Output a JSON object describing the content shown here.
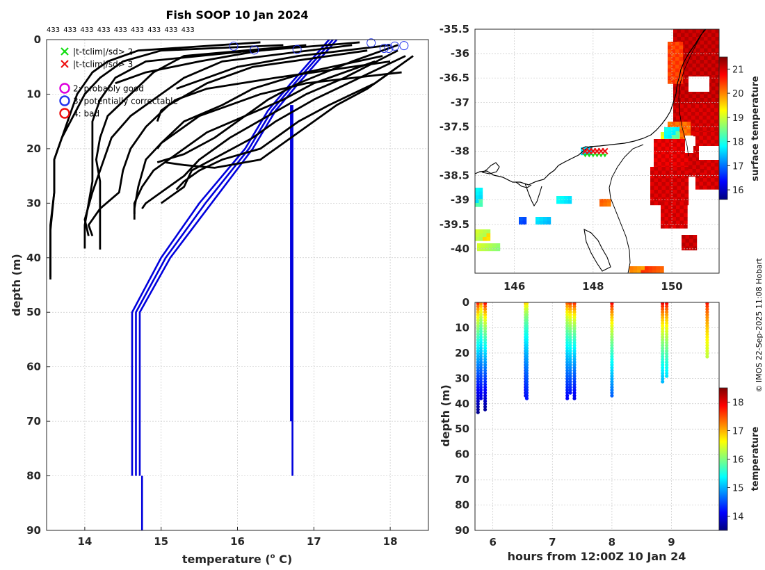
{
  "colors": {
    "profile": "#000000",
    "clim": "#0000dd",
    "grid": "#c8c8c8",
    "axis": "#262626",
    "flag_sd2": "#11dd11",
    "flag_sd3": "#ee1111",
    "flag_good": "#dd00dd",
    "flag_corr": "#2233ee",
    "flag_bad": "#ee1111",
    "land_coast": "#000000"
  },
  "colormap_stops": [
    "#00007f",
    "#0000ff",
    "#007fff",
    "#00ffff",
    "#7fff7f",
    "#ffff00",
    "#ff7f00",
    "#ff0000",
    "#7f0000"
  ],
  "watermark": "© IMOS 22-Sep-2025 11:08 Hobart",
  "chart_data": [
    {
      "id": "profiles",
      "type": "line",
      "title": "Fish SOOP 10 Jan 2024",
      "top_labels": [
        "433",
        "433",
        "433",
        "433",
        "433",
        "433",
        "433",
        "433",
        "433"
      ],
      "xlabel": "temperature (",
      "xlabel_sup": "o",
      "xlabel_end": " C)",
      "ylabel": "depth (m)",
      "xlim": [
        13.5,
        18.5
      ],
      "ylim": [
        0,
        90
      ],
      "x_ticks": [
        14,
        15,
        16,
        17,
        18
      ],
      "y_ticks": [
        0,
        10,
        20,
        30,
        40,
        50,
        60,
        70,
        80,
        90
      ],
      "legend": [
        {
          "marker": "x",
          "color_key": "flag_sd2",
          "label": "|t-tclim|/sd> 2"
        },
        {
          "marker": "x",
          "color_key": "flag_sd3",
          "label": "|t-tclim|/sd> 3"
        },
        {
          "marker": "o",
          "color_key": "flag_good",
          "label": "2: probably good"
        },
        {
          "marker": "o",
          "color_key": "flag_corr",
          "label": "3: potentially correctable"
        },
        {
          "marker": "o",
          "color_key": "flag_bad",
          "label": "4: bad"
        }
      ],
      "series": [
        {
          "name": "p1",
          "points": [
            [
              16.3,
              0.5
            ],
            [
              14.7,
              2
            ],
            [
              14.3,
              4
            ],
            [
              14.1,
              6
            ],
            [
              13.9,
              10
            ],
            [
              13.8,
              14
            ],
            [
              13.7,
              18
            ],
            [
              13.6,
              22
            ],
            [
              13.6,
              28
            ],
            [
              13.55,
              34
            ],
            [
              13.55,
              40
            ],
            [
              13.55,
              43.5
            ]
          ]
        },
        {
          "name": "p2",
          "points": [
            [
              16.6,
              1
            ],
            [
              15.0,
              2
            ],
            [
              14.5,
              4
            ],
            [
              14.2,
              7
            ],
            [
              14.0,
              10
            ],
            [
              13.85,
              14
            ],
            [
              13.7,
              18
            ],
            [
              13.6,
              22
            ],
            [
              13.6,
              28
            ],
            [
              13.55,
              35
            ],
            [
              13.55,
              40
            ],
            [
              13.55,
              44
            ]
          ]
        },
        {
          "name": "p3",
          "points": [
            [
              16.2,
              2
            ],
            [
              14.8,
              4
            ],
            [
              14.4,
              7
            ],
            [
              14.2,
              11
            ],
            [
              14.1,
              15
            ],
            [
              14.1,
              20
            ],
            [
              14.1,
              26
            ],
            [
              14.05,
              30
            ],
            [
              14.0,
              34
            ],
            [
              14.0,
              38.3
            ]
          ]
        },
        {
          "name": "p4",
          "points": [
            [
              16.9,
              1
            ],
            [
              15.3,
              3
            ],
            [
              14.9,
              6
            ],
            [
              14.6,
              10
            ],
            [
              14.3,
              14
            ],
            [
              14.2,
              18
            ],
            [
              14.15,
              22
            ],
            [
              14.2,
              26
            ],
            [
              14.2,
              30
            ],
            [
              14.2,
              35
            ],
            [
              14.2,
              38.5
            ]
          ]
        },
        {
          "name": "p5",
          "points": [
            [
              17.5,
              1
            ],
            [
              15.8,
              4
            ],
            [
              15.3,
              7
            ],
            [
              14.9,
              11
            ],
            [
              14.6,
              14
            ],
            [
              14.35,
              18
            ],
            [
              14.25,
              22
            ],
            [
              14.1,
              28
            ],
            [
              14.0,
              33
            ],
            [
              14.05,
              36
            ]
          ]
        },
        {
          "name": "p6",
          "points": [
            [
              17.7,
              2
            ],
            [
              16.2,
              5
            ],
            [
              15.6,
              8
            ],
            [
              15.1,
              12
            ],
            [
              14.8,
              16
            ],
            [
              14.6,
              20
            ],
            [
              14.5,
              24
            ],
            [
              14.45,
              28
            ],
            [
              14.2,
              31
            ],
            [
              14.05,
              34
            ],
            [
              14.1,
              36
            ]
          ]
        },
        {
          "name": "p7",
          "points": [
            [
              17.9,
              3
            ],
            [
              16.9,
              6
            ],
            [
              16.2,
              9
            ],
            [
              15.8,
              12
            ],
            [
              15.3,
              15
            ],
            [
              15.0,
              19
            ],
            [
              14.8,
              22
            ],
            [
              14.7,
              27
            ],
            [
              14.65,
              31
            ],
            [
              14.65,
              33
            ]
          ]
        },
        {
          "name": "p8",
          "points": [
            [
              17.8,
              4
            ],
            [
              17.0,
              8
            ],
            [
              16.6,
              11
            ],
            [
              16.1,
              14
            ],
            [
              15.6,
              17
            ],
            [
              15.2,
              21
            ],
            [
              14.9,
              24
            ],
            [
              14.75,
              27
            ],
            [
              14.65,
              30
            ],
            [
              14.65,
              32
            ]
          ]
        },
        {
          "name": "p9",
          "points": [
            [
              18.1,
              2
            ],
            [
              17.4,
              7
            ],
            [
              16.9,
              10
            ],
            [
              16.4,
              14
            ],
            [
              15.9,
              18
            ],
            [
              15.5,
              22
            ],
            [
              15.3,
              25
            ],
            [
              15.0,
              28
            ],
            [
              14.8,
              30
            ],
            [
              14.75,
              31
            ]
          ]
        },
        {
          "name": "p10",
          "points": [
            [
              18.2,
              3
            ],
            [
              17.6,
              7
            ],
            [
              17.0,
              11
            ],
            [
              16.5,
              15
            ],
            [
              16.2,
              18
            ],
            [
              15.8,
              21
            ],
            [
              15.4,
              24
            ],
            [
              15.3,
              27
            ],
            [
              15.1,
              29
            ],
            [
              15.0,
              30
            ]
          ]
        },
        {
          "name": "p11",
          "points": [
            [
              18.3,
              3
            ],
            [
              17.8,
              8
            ],
            [
              17.2,
              12
            ],
            [
              16.8,
              15
            ],
            [
              16.5,
              18
            ],
            [
              16.3,
              20
            ],
            [
              15.8,
              22
            ],
            [
              15.5,
              24
            ],
            [
              15.3,
              26
            ],
            [
              15.2,
              27.5
            ]
          ]
        },
        {
          "name": "p12",
          "points": [
            [
              18.1,
              5
            ],
            [
              17.7,
              9
            ],
            [
              17.3,
              12
            ],
            [
              16.9,
              16
            ],
            [
              16.6,
              19
            ],
            [
              16.3,
              22
            ],
            [
              15.7,
              23.5
            ],
            [
              15.3,
              23
            ],
            [
              15.05,
              22.5
            ]
          ]
        },
        {
          "name": "p13",
          "points": [
            [
              18.1,
              1
            ],
            [
              17.5,
              4
            ],
            [
              16.8,
              8
            ],
            [
              16.4,
              11
            ],
            [
              16.0,
              15
            ],
            [
              15.7,
              18
            ],
            [
              15.3,
              21
            ],
            [
              14.95,
              22.5
            ]
          ]
        },
        {
          "name": "p14",
          "points": [
            [
              18.15,
              6
            ],
            [
              16.9,
              8
            ],
            [
              16.3,
              10
            ],
            [
              15.9,
              12
            ],
            [
              15.5,
              14
            ],
            [
              15.2,
              17
            ],
            [
              15.0,
              19
            ],
            [
              14.95,
              20
            ]
          ]
        },
        {
          "name": "p15",
          "points": [
            [
              18.0,
              4
            ],
            [
              16.5,
              7
            ],
            [
              15.6,
              9
            ],
            [
              15.2,
              11
            ],
            [
              15.0,
              13
            ],
            [
              14.95,
              15
            ]
          ]
        },
        {
          "name": "p16",
          "points": [
            [
              17.6,
              0.5
            ],
            [
              16.3,
              2
            ],
            [
              15.5,
              4
            ],
            [
              14.8,
              6
            ],
            [
              14.4,
              8
            ]
          ]
        },
        {
          "name": "p17",
          "points": [
            [
              18.0,
              1
            ],
            [
              16.8,
              3
            ],
            [
              16.0,
              5
            ],
            [
              15.6,
              7
            ],
            [
              15.2,
              9
            ]
          ]
        }
      ],
      "clim_series": [
        {
          "name": "c1",
          "points": [
            [
              17.2,
              0
            ],
            [
              16.7,
              8
            ],
            [
              16.4,
              13
            ],
            [
              16.1,
              20
            ],
            [
              15.5,
              30
            ],
            [
              15.0,
              40
            ],
            [
              14.62,
              50
            ],
            [
              14.62,
              80
            ]
          ]
        },
        {
          "name": "c2",
          "points": [
            [
              17.25,
              0
            ],
            [
              16.75,
              8
            ],
            [
              16.45,
              13
            ],
            [
              16.15,
              20
            ],
            [
              15.58,
              30
            ],
            [
              15.06,
              40
            ],
            [
              14.67,
              50
            ],
            [
              14.67,
              80
            ]
          ]
        },
        {
          "name": "c3",
          "points": [
            [
              17.3,
              0
            ],
            [
              16.8,
              8
            ],
            [
              16.5,
              13
            ],
            [
              16.2,
              20
            ],
            [
              15.66,
              30
            ],
            [
              15.12,
              40
            ],
            [
              14.72,
              50
            ],
            [
              14.72,
              80
            ]
          ]
        },
        {
          "name": "c4",
          "points": [
            [
              16.72,
              12
            ],
            [
              16.72,
              80
            ]
          ]
        },
        {
          "name": "c5",
          "points": [
            [
              16.7,
              12
            ],
            [
              16.7,
              70
            ]
          ]
        },
        {
          "name": "c6",
          "points": [
            [
              14.75,
              80
            ],
            [
              14.75,
              90
            ]
          ]
        }
      ],
      "flag_circles": [
        [
          15.95,
          1.2
        ],
        [
          16.22,
          1.9
        ],
        [
          16.78,
          1.8
        ],
        [
          17.75,
          0.6
        ],
        [
          17.92,
          1.6
        ],
        [
          17.98,
          1.6
        ],
        [
          18.06,
          1.2
        ],
        [
          18.18,
          1.1
        ]
      ]
    },
    {
      "id": "sst_map",
      "type": "heatmap",
      "xlim": [
        145.0,
        151.2
      ],
      "ylim": [
        -40.5,
        -35.5
      ],
      "x_ticks": [
        146,
        148,
        150
      ],
      "y_ticks": [
        -35.5,
        -36,
        -36.5,
        -37,
        -37.5,
        -38,
        -38.5,
        -39,
        -39.5,
        -40
      ],
      "colorbar_label": "surface temperature",
      "colorbar_range": [
        15.6,
        21.5
      ],
      "colorbar_ticks": [
        16,
        17,
        18,
        19,
        20,
        21
      ],
      "stations": [
        [
          147.8,
          -38.0
        ],
        [
          147.9,
          -38.0
        ],
        [
          148.0,
          -38.0
        ],
        [
          148.1,
          -38.0
        ],
        [
          148.2,
          -38.0
        ],
        [
          148.3,
          -38.0
        ]
      ]
    },
    {
      "id": "depth_time",
      "type": "scatter",
      "xlabel": "hours from 12:00Z 10 Jan 24",
      "ylabel": "depth (m)",
      "xlim": [
        5.7,
        9.8
      ],
      "ylim": [
        0,
        90
      ],
      "x_ticks": [
        6,
        7,
        8,
        9
      ],
      "y_ticks": [
        0,
        10,
        20,
        30,
        40,
        50,
        60,
        70,
        80,
        90
      ],
      "colorbar_label": "temperature",
      "colorbar_range": [
        13.5,
        18.5
      ],
      "colorbar_ticks": [
        14,
        15,
        16,
        17,
        18
      ],
      "columns": [
        {
          "hour": 5.75,
          "maxdepth": 44,
          "surface": 18.1,
          "deep": 13.55
        },
        {
          "hour": 5.8,
          "maxdepth": 38,
          "surface": 17.5,
          "deep": 14.0
        },
        {
          "hour": 5.87,
          "maxdepth": 43,
          "surface": 18.2,
          "deep": 13.6
        },
        {
          "hour": 6.55,
          "maxdepth": 37,
          "surface": 17.2,
          "deep": 14.0
        },
        {
          "hour": 6.57,
          "maxdepth": 38,
          "surface": 17.0,
          "deep": 14.2
        },
        {
          "hour": 7.25,
          "maxdepth": 38,
          "surface": 17.7,
          "deep": 14.1
        },
        {
          "hour": 7.3,
          "maxdepth": 36,
          "surface": 17.9,
          "deep": 14.2
        },
        {
          "hour": 7.37,
          "maxdepth": 38,
          "surface": 18.0,
          "deep": 14.0
        },
        {
          "hour": 8.0,
          "maxdepth": 37,
          "surface": 18.2,
          "deep": 14.6
        },
        {
          "hour": 8.85,
          "maxdepth": 32,
          "surface": 18.3,
          "deep": 15.0
        },
        {
          "hour": 8.92,
          "maxdepth": 30,
          "surface": 18.2,
          "deep": 15.2
        },
        {
          "hour": 9.6,
          "maxdepth": 22,
          "surface": 18.0,
          "deep": 16.3
        }
      ]
    }
  ]
}
